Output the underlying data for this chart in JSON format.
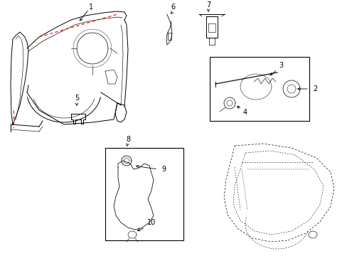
{
  "bg_color": "#ffffff",
  "line_color": "#000000",
  "red_color": "#ff0000",
  "figure_width": 4.89,
  "figure_height": 3.6,
  "dpi": 100
}
